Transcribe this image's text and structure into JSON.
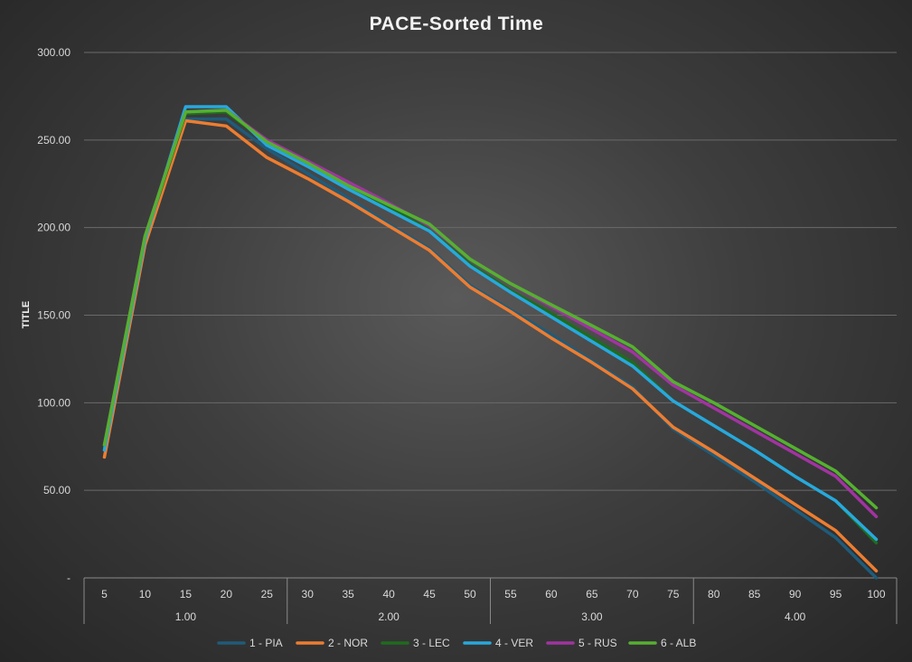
{
  "chart_data": {
    "type": "line",
    "title": "PACE-Sorted Time",
    "ylabel": "TITLE",
    "ylim": [
      0,
      300
    ],
    "yticks": [
      "-",
      "50.00",
      "100.00",
      "150.00",
      "200.00",
      "250.00",
      "300.00"
    ],
    "x": [
      "5",
      "10",
      "15",
      "20",
      "25",
      "30",
      "35",
      "40",
      "45",
      "50",
      "55",
      "60",
      "65",
      "70",
      "75",
      "80",
      "85",
      "90",
      "95",
      "100"
    ],
    "groups": [
      {
        "label": "1.00",
        "span": [
          0,
          4
        ]
      },
      {
        "label": "2.00",
        "span": [
          5,
          9
        ]
      },
      {
        "label": "3.00",
        "span": [
          10,
          14
        ]
      },
      {
        "label": "4.00",
        "span": [
          15,
          19
        ]
      }
    ],
    "legend": "bottom",
    "grid": true,
    "series": [
      {
        "name": "1 - PIA",
        "color": "#1f5b7a",
        "values": [
          73,
          192,
          262,
          262,
          245,
          231,
          217,
          202,
          188,
          167,
          153,
          139,
          124,
          109,
          85,
          70,
          55,
          39,
          23,
          0
        ]
      },
      {
        "name": "2 - NOR",
        "color": "#ed7d31",
        "values": [
          69,
          190,
          261,
          258,
          240,
          228,
          215,
          201,
          187,
          166,
          152,
          137,
          123,
          108,
          86,
          72,
          57,
          42,
          27,
          4
        ]
      },
      {
        "name": "3 - LEC",
        "color": "#1f6b1f",
        "values": [
          75,
          194,
          265,
          266,
          249,
          237,
          224,
          212,
          199,
          179,
          164,
          151,
          137,
          123,
          101,
          87,
          73,
          58,
          44,
          20
        ]
      },
      {
        "name": "4 - VER",
        "color": "#28a8dd",
        "values": [
          73,
          193,
          269,
          269,
          247,
          235,
          222,
          210,
          198,
          178,
          163,
          149,
          135,
          121,
          101,
          87,
          73,
          58,
          44,
          22
        ]
      },
      {
        "name": "5 - RUS",
        "color": "#a034a0",
        "values": [
          76,
          195,
          266,
          267,
          250,
          238,
          226,
          214,
          201,
          182,
          168,
          155,
          142,
          129,
          110,
          97,
          84,
          71,
          58,
          35
        ]
      },
      {
        "name": "6 - ALB",
        "color": "#55b030",
        "values": [
          76,
          195,
          266,
          267,
          249,
          237,
          224,
          213,
          202,
          182,
          168,
          156,
          144,
          132,
          112,
          100,
          87,
          74,
          61,
          40
        ]
      }
    ]
  }
}
